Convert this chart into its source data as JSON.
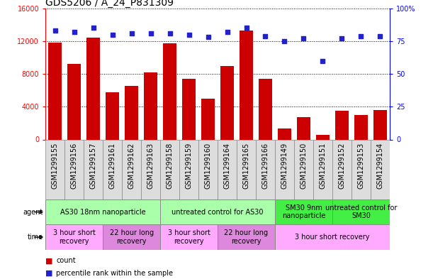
{
  "title": "GDS5206 / A_24_P831309",
  "samples": [
    "GSM1299155",
    "GSM1299156",
    "GSM1299157",
    "GSM1299161",
    "GSM1299162",
    "GSM1299163",
    "GSM1299158",
    "GSM1299159",
    "GSM1299160",
    "GSM1299164",
    "GSM1299165",
    "GSM1299166",
    "GSM1299149",
    "GSM1299150",
    "GSM1299151",
    "GSM1299152",
    "GSM1299153",
    "GSM1299154"
  ],
  "counts": [
    11800,
    9200,
    12400,
    5800,
    6500,
    8200,
    11700,
    7400,
    5000,
    9000,
    13300,
    7400,
    1300,
    2700,
    600,
    3500,
    3000,
    3600
  ],
  "percentiles": [
    83,
    82,
    85,
    80,
    81,
    81,
    81,
    80,
    78,
    82,
    85,
    79,
    75,
    77,
    60,
    77,
    79,
    79
  ],
  "bar_color": "#cc0000",
  "dot_color": "#2222cc",
  "ylim_left": [
    0,
    16000
  ],
  "ylim_right": [
    0,
    100
  ],
  "yticks_left": [
    0,
    4000,
    8000,
    12000,
    16000
  ],
  "yticks_right": [
    0,
    25,
    50,
    75,
    100
  ],
  "agent_groups": [
    {
      "label": "AS30 18nm nanoparticle",
      "start": 0,
      "end": 6,
      "color": "#aaffaa"
    },
    {
      "label": "untreated control for AS30",
      "start": 6,
      "end": 12,
      "color": "#aaffaa"
    },
    {
      "label": "SM30 9nm\nnanoparticle",
      "start": 12,
      "end": 15,
      "color": "#44ee44"
    },
    {
      "label": "untreated control for\nSM30",
      "start": 15,
      "end": 18,
      "color": "#44ee44"
    }
  ],
  "time_groups": [
    {
      "label": "3 hour short\nrecovery",
      "start": 0,
      "end": 3,
      "color": "#ffaaff"
    },
    {
      "label": "22 hour long\nrecovery",
      "start": 3,
      "end": 6,
      "color": "#dd88dd"
    },
    {
      "label": "3 hour short\nrecovery",
      "start": 6,
      "end": 9,
      "color": "#ffaaff"
    },
    {
      "label": "22 hour long\nrecovery",
      "start": 9,
      "end": 12,
      "color": "#dd88dd"
    },
    {
      "label": "3 hour short recovery",
      "start": 12,
      "end": 18,
      "color": "#ffaaff"
    }
  ],
  "legend_count_color": "#cc0000",
  "legend_pct_color": "#2222cc",
  "title_fontsize": 10,
  "tick_fontsize": 7,
  "bar_width": 0.7,
  "xtick_bg": "#dddddd",
  "label_fontsize": 7,
  "ann_fontsize": 7
}
